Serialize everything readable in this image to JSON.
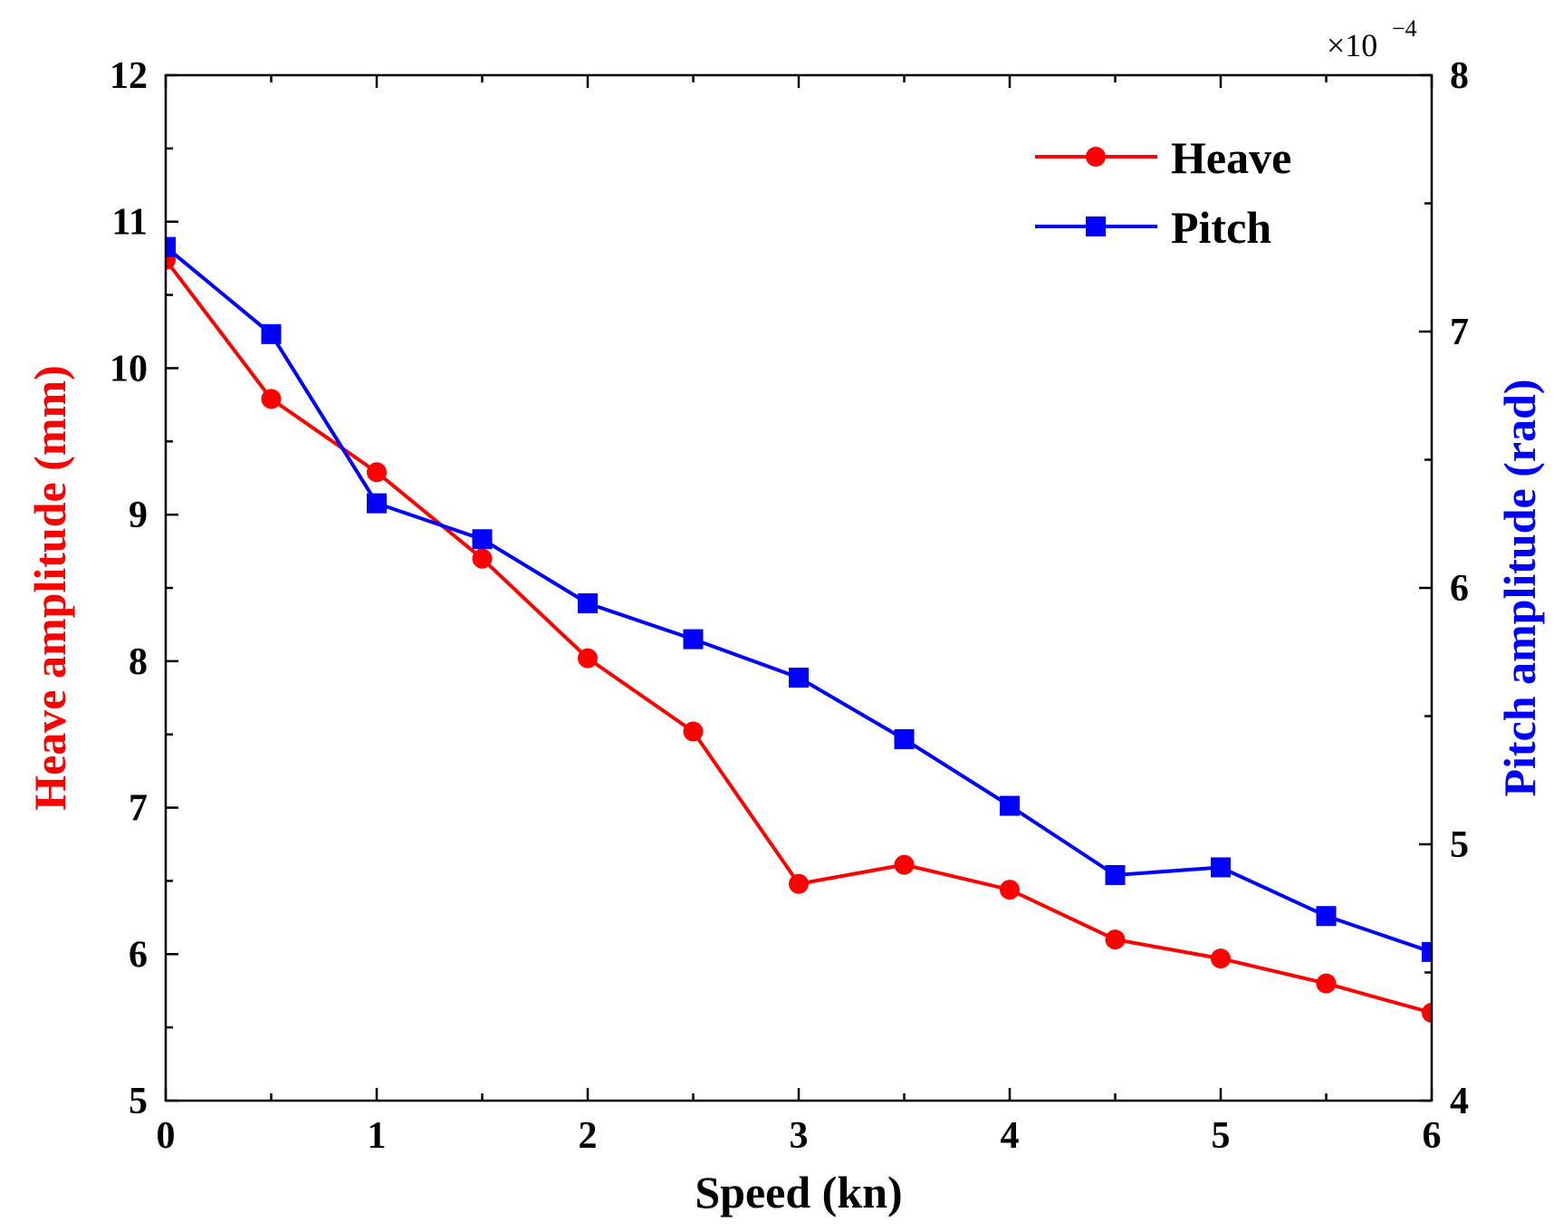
{
  "chart_data": {
    "type": "line",
    "xlabel": "Speed (kn)",
    "ylabel_left": "Heave amplitude (mm)",
    "ylabel_right": "Pitch amplitude (rad)",
    "right_axis_multiplier": "×10",
    "right_axis_exponent": "−4",
    "xlim": [
      0,
      6
    ],
    "ylim_left": [
      5,
      12
    ],
    "ylim_right": [
      4,
      8
    ],
    "x_ticks": [
      "0",
      "1",
      "2",
      "3",
      "4",
      "5",
      "6"
    ],
    "y_left_ticks": [
      "5",
      "6",
      "7",
      "8",
      "9",
      "10",
      "11",
      "12"
    ],
    "y_right_ticks": [
      "4",
      "5",
      "6",
      "7",
      "8"
    ],
    "legend_position": "top-right",
    "series": [
      {
        "name": "Heave",
        "axis": "left",
        "color": "#ff0000",
        "marker": "circle",
        "x": [
          0,
          0.5,
          1,
          1.5,
          2,
          2.5,
          3,
          3.5,
          4,
          4.5,
          5,
          5.5,
          6
        ],
        "values": [
          10.74,
          9.79,
          9.29,
          8.7,
          8.02,
          7.52,
          6.48,
          6.61,
          6.44,
          6.1,
          5.97,
          5.8,
          5.6
        ]
      },
      {
        "name": "Pitch",
        "axis": "right",
        "color": "#0000ff",
        "marker": "square",
        "x": [
          0,
          0.5,
          1,
          1.5,
          2,
          2.5,
          3,
          3.5,
          4,
          4.5,
          5,
          5.5,
          6
        ],
        "values": [
          7.33,
          6.99,
          6.33,
          6.19,
          5.94,
          5.8,
          5.65,
          5.41,
          5.15,
          4.88,
          4.91,
          4.72,
          4.58
        ]
      }
    ]
  }
}
